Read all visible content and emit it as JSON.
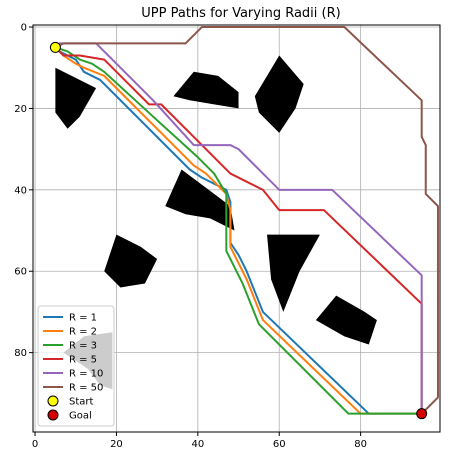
{
  "chart_data": {
    "type": "line",
    "title": "UPP Paths for Varying Radii (R)",
    "xlabel": "",
    "ylabel": "",
    "xlim": [
      -0.5,
      99.5
    ],
    "ylim": [
      99.5,
      -0.5
    ],
    "y_inverted": true,
    "grid": true,
    "x_ticks": [
      0,
      20,
      40,
      60,
      80
    ],
    "y_ticks": [
      0,
      20,
      40,
      60,
      80
    ],
    "legend_position": "lower-left",
    "obstacles": [
      {
        "shape": "polygon",
        "points": [
          [
            5,
            10
          ],
          [
            9,
            12
          ],
          [
            15,
            15
          ],
          [
            11,
            22
          ],
          [
            8,
            25
          ],
          [
            5,
            21
          ]
        ]
      },
      {
        "shape": "polygon",
        "points": [
          [
            34,
            17
          ],
          [
            39,
            11
          ],
          [
            45,
            12
          ],
          [
            50,
            16
          ],
          [
            50,
            20
          ],
          [
            44,
            19
          ],
          [
            38,
            18
          ]
        ]
      },
      {
        "shape": "polygon",
        "points": [
          [
            54,
            17
          ],
          [
            60,
            7
          ],
          [
            66,
            14
          ],
          [
            64,
            20
          ],
          [
            60,
            26
          ],
          [
            55,
            21
          ]
        ]
      },
      {
        "shape": "polygon",
        "points": [
          [
            32,
            44
          ],
          [
            36,
            35
          ],
          [
            44,
            41
          ],
          [
            48,
            44
          ],
          [
            49,
            50
          ],
          [
            43,
            47
          ],
          [
            37,
            46
          ]
        ]
      },
      {
        "shape": "polygon",
        "points": [
          [
            17,
            60
          ],
          [
            20,
            51
          ],
          [
            26,
            54
          ],
          [
            30,
            57
          ],
          [
            27,
            63
          ],
          [
            21,
            64
          ]
        ]
      },
      {
        "shape": "polygon",
        "points": [
          [
            57,
            51
          ],
          [
            70,
            51
          ],
          [
            65,
            60
          ],
          [
            61,
            70
          ],
          [
            58,
            62
          ]
        ]
      },
      {
        "shape": "polygon",
        "points": [
          [
            69,
            72
          ],
          [
            74,
            66
          ],
          [
            81,
            70
          ],
          [
            84,
            72
          ],
          [
            82,
            78
          ],
          [
            76,
            76
          ]
        ]
      },
      {
        "shape": "polygon",
        "points": [
          [
            7,
            80
          ],
          [
            12,
            76
          ],
          [
            19,
            75
          ],
          [
            19,
            89
          ],
          [
            16,
            88
          ],
          [
            13,
            84
          ]
        ]
      }
    ],
    "series": [
      {
        "name": "R = 1",
        "color": "#1f77b4",
        "points": [
          [
            5,
            5
          ],
          [
            6,
            6
          ],
          [
            10,
            8
          ],
          [
            12,
            11
          ],
          [
            16,
            13
          ],
          [
            27,
            24
          ],
          [
            38,
            35
          ],
          [
            41,
            37
          ],
          [
            47,
            40
          ],
          [
            48,
            43
          ],
          [
            48,
            53
          ],
          [
            50,
            56
          ],
          [
            52,
            60
          ],
          [
            54,
            65
          ],
          [
            56,
            70
          ],
          [
            82,
            95
          ],
          [
            95,
            95
          ]
        ]
      },
      {
        "name": "R = 2",
        "color": "#ff7f0e",
        "points": [
          [
            5,
            5
          ],
          [
            7,
            7
          ],
          [
            10,
            9
          ],
          [
            12,
            10
          ],
          [
            17,
            12
          ],
          [
            28,
            23
          ],
          [
            39,
            34
          ],
          [
            42,
            36
          ],
          [
            47,
            41
          ],
          [
            48,
            45
          ],
          [
            48,
            54
          ],
          [
            50,
            58
          ],
          [
            52,
            62
          ],
          [
            54,
            67
          ],
          [
            56,
            72
          ],
          [
            80,
            95
          ],
          [
            95,
            95
          ]
        ]
      },
      {
        "name": "R = 3",
        "color": "#2ca02c",
        "points": [
          [
            5,
            5
          ],
          [
            8,
            6
          ],
          [
            11,
            8
          ],
          [
            14,
            9
          ],
          [
            17,
            11
          ],
          [
            29,
            22
          ],
          [
            40,
            32
          ],
          [
            44,
            36
          ],
          [
            47,
            41
          ],
          [
            47,
            55
          ],
          [
            49,
            59
          ],
          [
            51,
            63
          ],
          [
            53,
            68
          ],
          [
            55,
            73
          ],
          [
            77,
            95
          ],
          [
            95,
            95
          ]
        ]
      },
      {
        "name": "R = 5",
        "color": "#d62728",
        "points": [
          [
            5,
            5
          ],
          [
            7,
            7
          ],
          [
            11,
            7
          ],
          [
            17,
            8
          ],
          [
            28,
            19
          ],
          [
            31,
            19
          ],
          [
            48,
            36
          ],
          [
            56,
            40
          ],
          [
            60,
            45
          ],
          [
            71,
            45
          ],
          [
            95,
            68
          ],
          [
            95,
            95
          ]
        ]
      },
      {
        "name": "R = 10",
        "color": "#9467bd",
        "points": [
          [
            5,
            5
          ],
          [
            6,
            4
          ],
          [
            15,
            4
          ],
          [
            29,
            18
          ],
          [
            39,
            29
          ],
          [
            48,
            29
          ],
          [
            50,
            30
          ],
          [
            60,
            40
          ],
          [
            73,
            40
          ],
          [
            95,
            61
          ],
          [
            95,
            95
          ]
        ]
      },
      {
        "name": "R = 50",
        "color": "#8c564b",
        "points": [
          [
            5,
            5
          ],
          [
            7,
            4
          ],
          [
            37,
            4
          ],
          [
            41,
            0
          ],
          [
            76,
            0
          ],
          [
            95,
            18
          ],
          [
            95,
            27
          ],
          [
            96,
            29
          ],
          [
            96,
            41
          ],
          [
            99,
            44
          ],
          [
            99,
            91
          ],
          [
            96,
            94
          ],
          [
            95,
            95
          ]
        ]
      }
    ],
    "markers": [
      {
        "name": "Start",
        "x": 5,
        "y": 5,
        "color": "#ffff00"
      },
      {
        "name": "Goal",
        "x": 95,
        "y": 95,
        "color": "#d40000"
      }
    ]
  }
}
